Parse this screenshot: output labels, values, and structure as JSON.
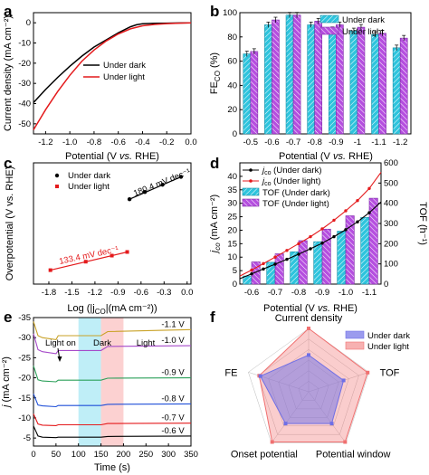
{
  "chart_data": [
    {
      "panel": "a",
      "type": "line",
      "xlabel": "Potential (V vs. RHE)",
      "ylabel": "Current density (mA cm⁻²)",
      "xlim": [
        -1.3,
        0.0
      ],
      "ylim": [
        -55,
        5
      ],
      "xticks": [
        "-1.2",
        "-1.0",
        "-0.8",
        "-0.6",
        "-0.4",
        "-0.2",
        "0.0"
      ],
      "yticks": [
        "0",
        "-10",
        "-20",
        "-30",
        "-40",
        "-50"
      ],
      "legend": [
        "Under dark",
        "Under light"
      ],
      "legend_position": "center",
      "series": [
        {
          "name": "Under dark",
          "color": "#000000",
          "x": [
            -1.3,
            -1.2,
            -1.1,
            -1.0,
            -0.9,
            -0.8,
            -0.7,
            -0.6,
            -0.5,
            -0.45,
            -0.4,
            -0.3,
            -0.2,
            -0.1,
            0.0
          ],
          "y": [
            -39.5,
            -33.0,
            -27.0,
            -21.5,
            -16.5,
            -12.0,
            -8.5,
            -5.0,
            -2.0,
            -1.0,
            -0.5,
            -0.3,
            -0.2,
            -0.1,
            0.0
          ]
        },
        {
          "name": "Under light",
          "color": "#e41a1c",
          "x": [
            -1.3,
            -1.2,
            -1.1,
            -1.0,
            -0.9,
            -0.8,
            -0.7,
            -0.6,
            -0.5,
            -0.4,
            -0.3,
            -0.2,
            -0.1,
            0.0
          ],
          "y": [
            -53.0,
            -43.0,
            -34.0,
            -26.0,
            -19.0,
            -13.5,
            -9.0,
            -5.5,
            -3.0,
            -1.5,
            -0.8,
            -0.4,
            -0.2,
            0.0
          ]
        }
      ]
    },
    {
      "panel": "b",
      "type": "bar",
      "xlabel": "Potential (V vs. RHE)",
      "ylabel": "FE",
      "ylabel_sub": "CO",
      "ylabel_unit": " (%)",
      "ylim": [
        0,
        100
      ],
      "yticks": [
        "0",
        "20",
        "40",
        "60",
        "80",
        "100"
      ],
      "categories": [
        "-0.5",
        "-0.6",
        "-0.7",
        "-0.8",
        "-0.9",
        "-1",
        "-1.1",
        "-1.2"
      ],
      "legend": [
        "Under dark",
        "Under light"
      ],
      "legend_position": "top-right",
      "series": [
        {
          "name": "Under dark",
          "color": "#2ec4dd",
          "values": [
            66,
            90,
            98,
            90,
            86,
            85,
            82,
            71
          ]
        },
        {
          "name": "Under light",
          "color": "#b54fdf",
          "values": [
            68,
            94,
            98,
            93,
            90,
            88,
            83,
            79
          ]
        }
      ]
    },
    {
      "panel": "c",
      "type": "scatter",
      "xlabel": "Log (|j",
      "xlabel_sub": "CO",
      "xlabel_end": "|(mA cm⁻²))",
      "ylabel": "Overpotential (V vs. RHE)",
      "xlim": [
        -2.0,
        0.05
      ],
      "ylim": [
        0,
        1
      ],
      "xticks": [
        "-1.8",
        "-1.5",
        "-1.2",
        "-0.9",
        "-0.6",
        "-0.3",
        "0.0"
      ],
      "legend": [
        "Under dark",
        "Under light"
      ],
      "legend_position": "top-left",
      "annotations": [
        "180.4 mV dec⁻¹",
        "133.4 mV dec⁻¹"
      ],
      "series": [
        {
          "name": "Under dark",
          "color": "#000000",
          "x": [
            -0.75,
            -0.55,
            -0.32,
            -0.08
          ],
          "y": [
            0.7,
            0.76,
            0.82,
            0.885
          ]
        },
        {
          "name": "Under light",
          "color": "#e41a1c",
          "x": [
            -1.78,
            -1.32,
            -0.98,
            -0.78
          ],
          "y": [
            0.115,
            0.185,
            0.235,
            0.265
          ]
        }
      ]
    },
    {
      "panel": "d",
      "type": "bar",
      "xlabel": "Potential (V vs. RHE)",
      "ylabel": "j",
      "ylabel_sub": "co",
      "ylabel_unit": " (mA cm⁻²)",
      "y2label": "TOF (h⁻¹)",
      "categories": [
        "-0.6",
        "-0.7",
        "-0.8",
        "-0.9",
        "-1.0",
        "-1.1"
      ],
      "ylim": [
        0,
        45
      ],
      "yticks": [
        "0",
        "5",
        "10",
        "15",
        "20",
        "25",
        "30",
        "35",
        "40"
      ],
      "y2lim": [
        0,
        600
      ],
      "y2ticks": [
        "0",
        "100",
        "200",
        "300",
        "400",
        "500",
        "600"
      ],
      "legend": [
        "j_co (Under dark)",
        "j_co (Under light)",
        "TOF (Under dark)",
        "TOF (Under light)"
      ],
      "legend_position": "top-left",
      "series": [
        {
          "name": "j_co (Under dark)",
          "kind": "line",
          "axis": "left",
          "color": "#000000",
          "x": [
            -0.55,
            -0.6,
            -0.65,
            -0.7,
            -0.75,
            -0.8,
            -0.85,
            -0.9,
            -0.95,
            -1.0,
            -1.05,
            -1.1,
            -1.15
          ],
          "y": [
            2.0,
            3.8,
            5.6,
            7.4,
            9.2,
            11.1,
            13.1,
            15.2,
            17.6,
            20.2,
            23.1,
            26.5,
            30.5
          ]
        },
        {
          "name": "j_co (Under light)",
          "kind": "line",
          "axis": "left",
          "color": "#e41a1c",
          "x": [
            -0.55,
            -0.6,
            -0.65,
            -0.7,
            -0.75,
            -0.8,
            -0.85,
            -0.9,
            -0.95,
            -1.0,
            -1.05,
            -1.1,
            -1.15
          ],
          "y": [
            3.0,
            5.2,
            7.6,
            10.0,
            12.5,
            15.0,
            17.6,
            20.5,
            23.7,
            27.2,
            31.0,
            35.5,
            41.5
          ]
        },
        {
          "name": "TOF (Under dark)",
          "kind": "bar",
          "axis": "right",
          "color": "#2ec4dd",
          "values": [
            40,
            108,
            160,
            210,
            262,
            330
          ]
        },
        {
          "name": "TOF (Under light)",
          "kind": "bar",
          "axis": "right",
          "color": "#b54fdf",
          "values": [
            110,
            150,
            215,
            272,
            338,
            425
          ]
        }
      ]
    },
    {
      "panel": "e",
      "type": "line",
      "xlabel": "Time (s)",
      "ylabel": "j (mA cm⁻²)",
      "xlim": [
        0,
        350
      ],
      "ylim": [
        -35,
        -3
      ],
      "xticks": [
        "0",
        "50",
        "100",
        "150",
        "200",
        "250",
        "300",
        "350"
      ],
      "yticks": [
        "-35",
        "-30",
        "-25",
        "-20",
        "-15",
        "-10",
        "-5"
      ],
      "annotations": [
        "Light on",
        "Dark",
        "Light"
      ],
      "shaded_regions": [
        {
          "label": "Dark",
          "x": [
            100,
            150
          ],
          "color": "#bfeef7"
        },
        {
          "label": "Light",
          "x": [
            150,
            200
          ],
          "color": "#fcd1d1"
        }
      ],
      "series": [
        {
          "name": "-1.1 V",
          "color": "#c9a227",
          "x": [
            0,
            10,
            20,
            50,
            55,
            150,
            165,
            350
          ],
          "y": [
            -34,
            -30.5,
            -30,
            -29.5,
            -30.5,
            -30.5,
            -31.5,
            -32
          ]
        },
        {
          "name": "-1.0 V",
          "color": "#a64ac9",
          "x": [
            0,
            10,
            20,
            50,
            55,
            150,
            165,
            350
          ],
          "y": [
            -31,
            -27,
            -26.5,
            -26,
            -26.8,
            -26.8,
            -27.8,
            -28
          ]
        },
        {
          "name": "-0.9 V",
          "color": "#2ca05a",
          "x": [
            0,
            10,
            20,
            50,
            55,
            150,
            165,
            350
          ],
          "y": [
            -23,
            -19.5,
            -19.2,
            -19,
            -19.4,
            -19.4,
            -19.9,
            -20
          ]
        },
        {
          "name": "-0.8 V",
          "color": "#1f4fd8",
          "x": [
            0,
            10,
            20,
            50,
            55,
            150,
            165,
            350
          ],
          "y": [
            -16,
            -13.2,
            -13,
            -12.8,
            -13.1,
            -13.1,
            -13.4,
            -13.5
          ]
        },
        {
          "name": "-0.7 V",
          "color": "#e41a1c",
          "x": [
            0,
            10,
            20,
            50,
            55,
            150,
            165,
            350
          ],
          "y": [
            -11,
            -8.5,
            -8.2,
            -8.1,
            -8.3,
            -8.3,
            -8.6,
            -8.7
          ]
        },
        {
          "name": "-0.6 V",
          "color": "#000000",
          "x": [
            0,
            10,
            20,
            50,
            55,
            150,
            165,
            350
          ],
          "y": [
            -8,
            -5.5,
            -5.2,
            -5.1,
            -5.2,
            -5.2,
            -5.4,
            -5.5
          ]
        }
      ]
    },
    {
      "panel": "f",
      "type": "radar",
      "axes": [
        "Current density",
        "TOF",
        "Potential window",
        "Onset potential",
        "FE"
      ],
      "legend": [
        "Under dark",
        "Under light"
      ],
      "legend_position": "top-right",
      "series": [
        {
          "name": "Under dark",
          "color": "#6f6fe6",
          "values": [
            0.58,
            0.58,
            0.62,
            0.62,
            0.8
          ]
        },
        {
          "name": "Under light",
          "color": "#f07070",
          "values": [
            1.0,
            0.98,
            0.98,
            0.98,
            0.82
          ]
        }
      ]
    }
  ],
  "panel_labels": [
    "a",
    "b",
    "c",
    "d",
    "e",
    "f"
  ]
}
